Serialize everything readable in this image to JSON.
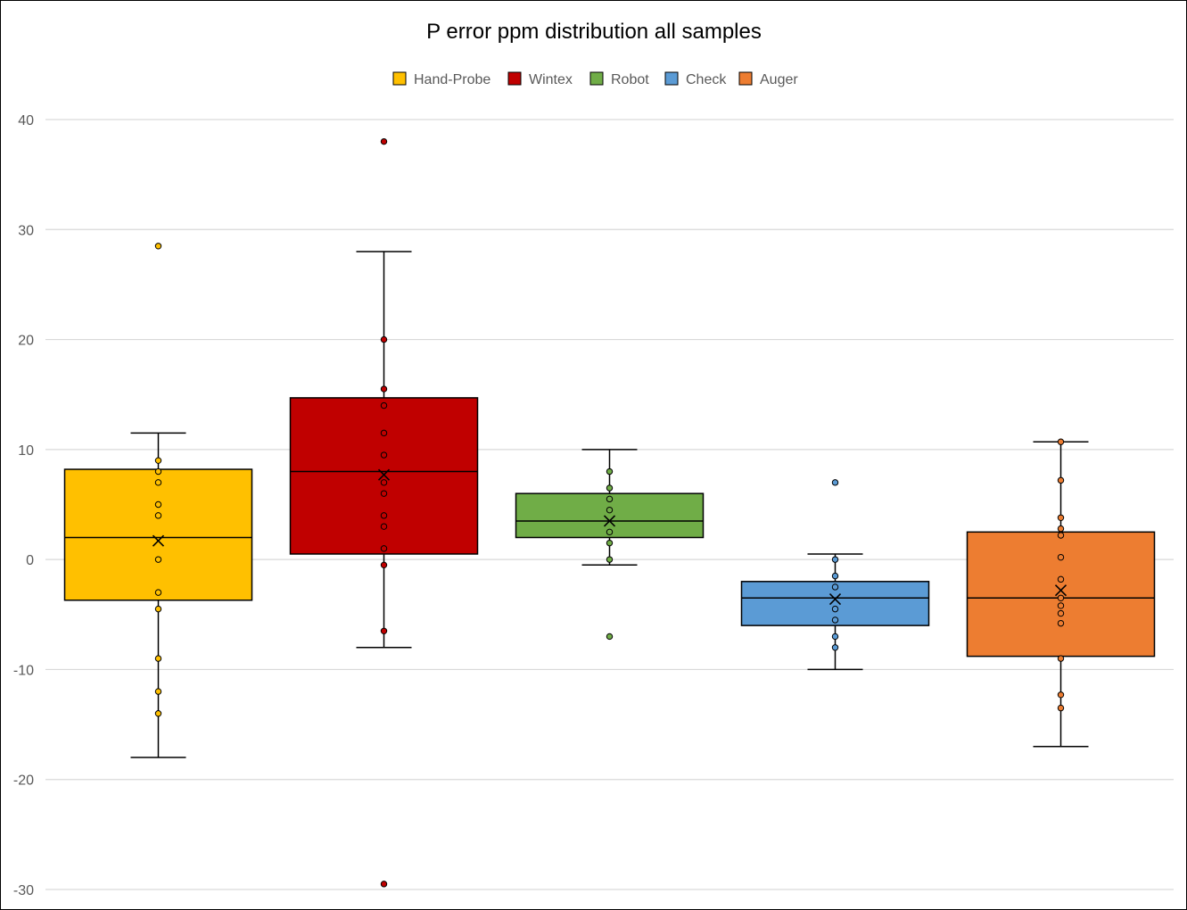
{
  "chart_data": {
    "type": "box",
    "title": "P error ppm distribution all samples",
    "xlabel": "",
    "ylabel": "",
    "ylim": [
      -30,
      40
    ],
    "yticks": [
      40,
      30,
      20,
      10,
      0,
      -10,
      -20,
      -30
    ],
    "grid": true,
    "legend_position": "top",
    "series": [
      {
        "name": "Hand-Probe",
        "color": "#FFC000",
        "whisker_low": -18,
        "q1": -3.7,
        "median": 2,
        "q3": 8.2,
        "whisker_high": 11.5,
        "mean": 1.7,
        "points": [
          28.5,
          9,
          8,
          7,
          5,
          4,
          0,
          -3,
          -4.5,
          -9,
          -12,
          -14
        ]
      },
      {
        "name": "Wintex",
        "color": "#C00000",
        "whisker_low": -8,
        "q1": 0.5,
        "median": 8,
        "q3": 14.7,
        "whisker_high": 28,
        "mean": 7.7,
        "points": [
          38,
          20,
          15.5,
          14,
          11.5,
          9.5,
          7,
          6,
          4,
          3,
          1,
          -0.5,
          -6.5,
          -29.5
        ]
      },
      {
        "name": "Robot",
        "color": "#70AD47",
        "whisker_low": -0.5,
        "q1": 2,
        "median": 3.5,
        "q3": 6,
        "whisker_high": 10,
        "mean": 3.5,
        "points": [
          8,
          6.5,
          5.5,
          4.5,
          2.5,
          1.5,
          0,
          -7
        ]
      },
      {
        "name": "Check",
        "color": "#5B9BD5",
        "whisker_low": -10,
        "q1": -6,
        "median": -3.5,
        "q3": -2,
        "whisker_high": 0.5,
        "mean": -3.6,
        "points": [
          7,
          0,
          -1.5,
          -2.5,
          -4.5,
          -5.5,
          -7,
          -8
        ]
      },
      {
        "name": "Auger",
        "color": "#ED7D31",
        "whisker_low": -17,
        "q1": -8.8,
        "median": -3.5,
        "q3": 2.5,
        "whisker_high": 10.7,
        "mean": -2.8,
        "points": [
          10.7,
          7.2,
          3.8,
          2.8,
          2.2,
          0.2,
          -1.8,
          -3.5,
          -4.2,
          -4.9,
          -5.8,
          -9,
          -12.3,
          -13.5
        ]
      }
    ]
  }
}
